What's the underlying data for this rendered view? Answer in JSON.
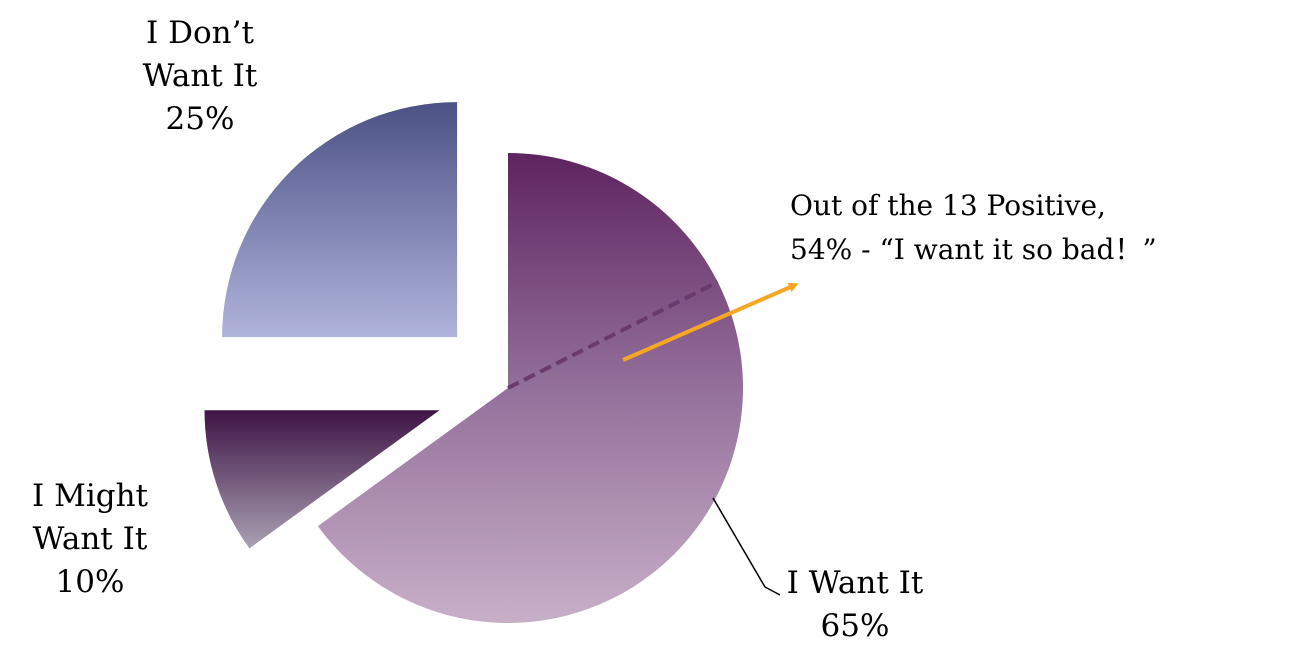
{
  "chart_data": {
    "type": "pie",
    "slices": [
      {
        "label_lines": [
          "I Want It"
        ],
        "percent_label": "65%",
        "value": 65,
        "color": "#8a5a8c",
        "exploded": false
      },
      {
        "label_lines": [
          "I Might",
          "Want It"
        ],
        "percent_label": "10%",
        "value": 10,
        "color": "#4a2452",
        "exploded": true
      },
      {
        "label_lines": [
          "I Don’t",
          "Want It"
        ],
        "percent_label": "25%",
        "value": 25,
        "color": "#6f74a8",
        "exploded": true
      }
    ],
    "annotation": {
      "line1": "Out of the 13 Positive,",
      "line2": "54% - “I want it so bad！”",
      "sub_percent": 54,
      "arrow_color": "#f5a623"
    }
  }
}
